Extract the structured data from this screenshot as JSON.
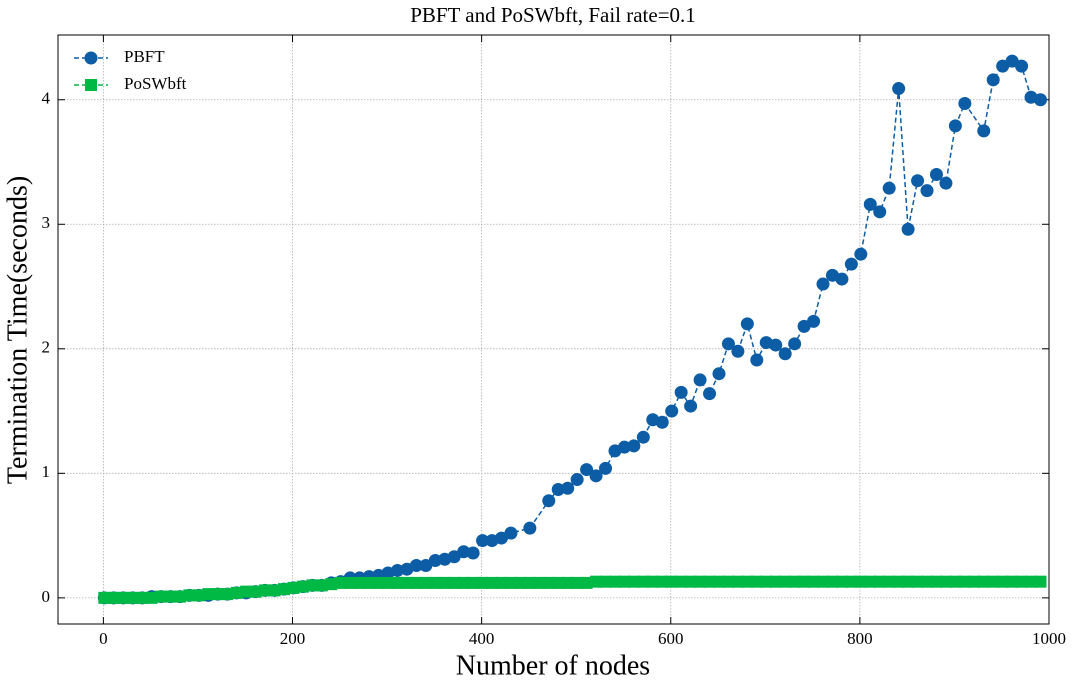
{
  "chart_data": {
    "type": "line",
    "title": "PBFT and PoSWbft, Fail rate=0.1",
    "x_label": "Number of nodes",
    "y_label": "Termination Time(seconds)",
    "xlim": [
      -48,
      1000
    ],
    "ylim": [
      -0.21,
      4.52
    ],
    "xticks": [
      0,
      200,
      400,
      600,
      800,
      1000
    ],
    "yticks": [
      0,
      1,
      2,
      3,
      4
    ],
    "grid": true,
    "legend": "upper-left",
    "series": [
      {
        "name": "PBFT",
        "color": "#0C5DA5",
        "marker": "circle",
        "x": [
          1,
          11,
          21,
          31,
          41,
          51,
          61,
          71,
          81,
          91,
          101,
          111,
          121,
          131,
          141,
          151,
          161,
          171,
          181,
          191,
          201,
          211,
          221,
          231,
          241,
          251,
          261,
          271,
          281,
          291,
          301,
          311,
          321,
          331,
          341,
          351,
          361,
          371,
          381,
          391,
          401,
          411,
          421,
          431,
          451,
          471,
          481,
          491,
          501,
          511,
          521,
          531,
          541,
          551,
          561,
          571,
          581,
          591,
          601,
          611,
          621,
          631,
          641,
          651,
          661,
          671,
          681,
          691,
          701,
          711,
          721,
          731,
          741,
          751,
          761,
          771,
          781,
          791,
          801,
          811,
          821,
          831,
          841,
          851,
          861,
          871,
          881,
          891,
          901,
          911,
          931,
          941,
          951,
          961,
          971,
          981,
          991
        ],
        "values": [
          0,
          0,
          0,
          0,
          0,
          0.01,
          0.01,
          0.01,
          0.01,
          0.02,
          0.02,
          0.02,
          0.03,
          0.03,
          0.04,
          0.04,
          0.05,
          0.06,
          0.06,
          0.07,
          0.08,
          0.09,
          0.1,
          0.1,
          0.12,
          0.13,
          0.16,
          0.16,
          0.17,
          0.18,
          0.2,
          0.22,
          0.23,
          0.26,
          0.26,
          0.3,
          0.31,
          0.33,
          0.37,
          0.36,
          0.46,
          0.46,
          0.48,
          0.52,
          0.56,
          0.78,
          0.87,
          0.88,
          0.95,
          1.03,
          0.98,
          1.04,
          1.18,
          1.21,
          1.22,
          1.29,
          1.43,
          1.41,
          1.5,
          1.65,
          1.54,
          1.75,
          1.64,
          1.8,
          2.04,
          1.98,
          2.2,
          1.91,
          2.05,
          2.03,
          1.96,
          2.04,
          2.18,
          2.22,
          2.52,
          2.59,
          2.56,
          2.68,
          2.76,
          3.16,
          3.1,
          3.29,
          4.09,
          2.96,
          3.35,
          3.27,
          3.4,
          3.33,
          3.79,
          3.97,
          3.75,
          4.16,
          4.27,
          4.31,
          4.27,
          4.02,
          4.0
        ]
      },
      {
        "name": "PoSWbft",
        "color": "#00B945",
        "marker": "square",
        "x": [
          1,
          11,
          21,
          31,
          41,
          51,
          61,
          71,
          81,
          91,
          101,
          111,
          121,
          131,
          141,
          151,
          161,
          171,
          181,
          191,
          201,
          211,
          221,
          231,
          241,
          251,
          261,
          271,
          281,
          291,
          301,
          311,
          321,
          331,
          341,
          351,
          361,
          371,
          381,
          391,
          401,
          411,
          421,
          431,
          441,
          451,
          461,
          471,
          481,
          491,
          501,
          511,
          521,
          531,
          541,
          551,
          561,
          571,
          581,
          591,
          601,
          611,
          621,
          631,
          641,
          651,
          661,
          671,
          681,
          691,
          701,
          711,
          721,
          731,
          741,
          751,
          761,
          771,
          781,
          791,
          801,
          811,
          821,
          831,
          841,
          851,
          861,
          871,
          881,
          891,
          901,
          911,
          921,
          931,
          941,
          951,
          961,
          971,
          981,
          991
        ],
        "values": [
          0,
          0,
          0,
          0,
          0,
          0,
          0.01,
          0.01,
          0.01,
          0.02,
          0.02,
          0.03,
          0.03,
          0.03,
          0.04,
          0.05,
          0.05,
          0.06,
          0.06,
          0.07,
          0.08,
          0.09,
          0.1,
          0.1,
          0.11,
          0.12,
          0.12,
          0.12,
          0.12,
          0.12,
          0.12,
          0.12,
          0.12,
          0.12,
          0.12,
          0.12,
          0.12,
          0.12,
          0.12,
          0.12,
          0.12,
          0.12,
          0.12,
          0.12,
          0.12,
          0.12,
          0.12,
          0.12,
          0.12,
          0.12,
          0.12,
          0.12,
          0.13,
          0.13,
          0.13,
          0.13,
          0.13,
          0.13,
          0.13,
          0.13,
          0.13,
          0.13,
          0.13,
          0.13,
          0.13,
          0.13,
          0.13,
          0.13,
          0.13,
          0.13,
          0.13,
          0.13,
          0.13,
          0.13,
          0.13,
          0.13,
          0.13,
          0.13,
          0.13,
          0.13,
          0.13,
          0.13,
          0.13,
          0.13,
          0.13,
          0.13,
          0.13,
          0.13,
          0.13,
          0.13,
          0.13,
          0.13,
          0.13,
          0.13,
          0.13,
          0.13,
          0.13,
          0.13,
          0.13,
          0.13
        ]
      }
    ]
  }
}
